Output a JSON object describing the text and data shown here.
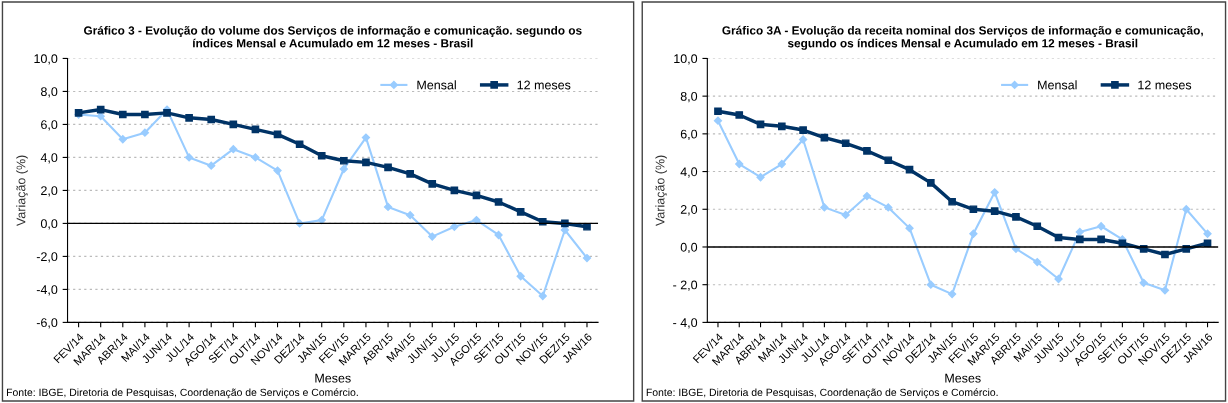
{
  "chart_data": [
    {
      "type": "line",
      "title": "Gráfico 3 - Evolução do volume dos Serviços de informação e comunicação. segundo os\níndices Mensal e Acumulado em 12 meses - Brasil",
      "xlabel": "Meses",
      "ylabel": "Variação (%)",
      "categories": [
        "FEV/14",
        "MAR/14",
        "ABR/14",
        "MAI/14",
        "JUN/14",
        "JUL/14",
        "AGO/14",
        "SET/14",
        "OUT/14",
        "NOV/14",
        "DEZ/14",
        "JAN/15",
        "FEV/15",
        "MAR/15",
        "ABR/15",
        "MAI/15",
        "JUN/15",
        "JUL/15",
        "AGO/15",
        "SET/15",
        "OUT/15",
        "NOV/15",
        "DEZ/15",
        "JAN/16"
      ],
      "series": [
        {
          "name": "Mensal",
          "color": "#99ccff",
          "marker": "diamond",
          "values": [
            6.6,
            6.5,
            5.1,
            5.5,
            6.9,
            4.0,
            3.5,
            4.5,
            4.0,
            3.2,
            0.0,
            0.2,
            3.3,
            5.2,
            1.0,
            0.5,
            -0.8,
            -0.2,
            0.2,
            -0.7,
            -3.2,
            -4.4,
            -0.4,
            -2.1
          ]
        },
        {
          "name": "12 meses",
          "color": "#003366",
          "marker": "square",
          "values": [
            6.7,
            6.9,
            6.6,
            6.6,
            6.7,
            6.4,
            6.3,
            6.0,
            5.7,
            5.4,
            4.8,
            4.1,
            3.8,
            3.7,
            3.4,
            3.0,
            2.4,
            2.0,
            1.7,
            1.3,
            0.7,
            0.1,
            0.0,
            -0.2
          ]
        }
      ],
      "ylim": [
        -6,
        10
      ],
      "yticks": [
        {
          "value": -6,
          "label": "-6,0"
        },
        {
          "value": -4,
          "label": "-4,0"
        },
        {
          "value": -2,
          "label": "-2,0"
        },
        {
          "value": 0,
          "label": "0,0"
        },
        {
          "value": 2,
          "label": "2,0"
        },
        {
          "value": 4,
          "label": "4,0"
        },
        {
          "value": 6,
          "label": "6,0"
        },
        {
          "value": 8,
          "label": "8,0"
        },
        {
          "value": 10,
          "label": "10,0"
        }
      ],
      "grid": "y",
      "legend": "top right",
      "annotations": [
        "Fonte: IBGE, Diretoria de Pesquisas, Coordenação de Serviços e Comércio."
      ]
    },
    {
      "type": "line",
      "title": "Gráfico 3A - Evolução da receita nominal dos Serviços de informação e comunicação,\nsegundo os índices Mensal e Acumulado em 12 meses - Brasil",
      "xlabel": "Meses",
      "ylabel": "Variação (%)",
      "categories": [
        "FEV/14",
        "MAR/14",
        "ABR/14",
        "MAI/14",
        "JUN/14",
        "JUL/14",
        "AGO/14",
        "SET/14",
        "OUT/14",
        "NOV/14",
        "DEZ/14",
        "JAN/15",
        "FEV/15",
        "MAR/15",
        "ABR/15",
        "MAI/15",
        "JUN/15",
        "JUL/15",
        "AGO/15",
        "SET/15",
        "OUT/15",
        "NOV/15",
        "DEZ/15",
        "JAN/16"
      ],
      "series": [
        {
          "name": "Mensal",
          "color": "#99ccff",
          "marker": "diamond",
          "values": [
            6.7,
            4.4,
            3.7,
            4.4,
            5.7,
            2.1,
            1.7,
            2.7,
            2.1,
            1.0,
            -2.0,
            -2.5,
            0.7,
            2.9,
            -0.1,
            -0.8,
            -1.7,
            0.8,
            1.1,
            0.4,
            -1.9,
            -2.3,
            2.0,
            0.7
          ]
        },
        {
          "name": "12 meses",
          "color": "#003366",
          "marker": "square",
          "values": [
            7.2,
            7.0,
            6.5,
            6.4,
            6.2,
            5.8,
            5.5,
            5.1,
            4.6,
            4.1,
            3.4,
            2.4,
            2.0,
            1.9,
            1.6,
            1.1,
            0.5,
            0.4,
            0.4,
            0.2,
            -0.1,
            -0.4,
            -0.1,
            0.2
          ]
        }
      ],
      "ylim": [
        -4,
        10
      ],
      "yticks": [
        {
          "value": -4,
          "label": "- 4,0"
        },
        {
          "value": -2,
          "label": "- 2,0"
        },
        {
          "value": 0,
          "label": "0,0"
        },
        {
          "value": 2,
          "label": "2,0"
        },
        {
          "value": 4,
          "label": "4,0"
        },
        {
          "value": 6,
          "label": "6,0"
        },
        {
          "value": 8,
          "label": "8,0"
        },
        {
          "value": 10,
          "label": "10,0"
        }
      ],
      "grid": "y",
      "legend": "top right",
      "annotations": [
        "Fonte: IBGE, Diretoria de Pesquisas, Coordenação de Serviços e Comércio."
      ]
    }
  ]
}
